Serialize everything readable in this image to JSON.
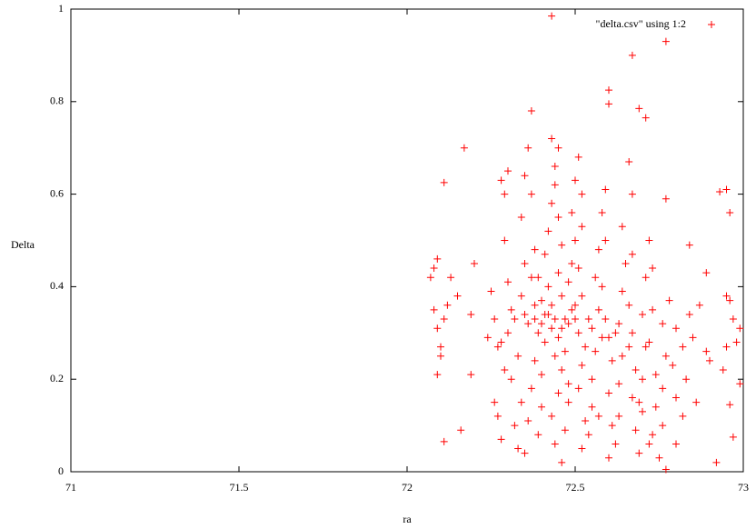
{
  "chart_data": {
    "type": "scatter",
    "x_label": "ra",
    "y_label": "Delta",
    "xlim": [
      71,
      73
    ],
    "ylim": [
      0,
      1
    ],
    "xticks": [
      71,
      71.5,
      72,
      72.5,
      73
    ],
    "yticks": [
      0,
      0.2,
      0.4,
      0.6,
      0.8,
      1
    ],
    "legend_position": "top-right",
    "x": [
      72.43,
      72.77,
      72.67,
      72.6,
      72.6,
      72.37,
      72.69,
      72.71,
      72.17,
      72.43,
      72.11,
      72.95,
      72.96,
      72.93,
      72.92,
      72.77,
      72.11,
      72.09,
      72.16,
      72.89,
      72.84,
      72.99,
      72.97,
      72.96,
      72.08,
      72.09,
      72.08,
      72.09,
      72.1,
      72.12,
      72.11,
      72.13,
      72.15,
      72.07,
      72.1,
      72.2,
      72.19,
      72.19,
      72.24,
      72.25,
      72.26,
      72.27,
      72.27,
      72.26,
      72.28,
      72.29,
      72.3,
      72.29,
      72.3,
      72.31,
      72.3,
      72.31,
      72.29,
      72.28,
      72.32,
      72.33,
      72.34,
      72.33,
      72.34,
      72.35,
      72.34,
      72.35,
      72.36,
      72.37,
      72.38,
      72.37,
      72.38,
      72.36,
      72.39,
      72.38,
      72.37,
      72.36,
      72.35,
      72.39,
      72.4,
      72.4,
      72.41,
      72.41,
      72.4,
      72.42,
      72.41,
      72.42,
      72.43,
      72.44,
      72.45,
      72.44,
      72.45,
      72.46,
      72.45,
      72.46,
      72.44,
      72.43,
      72.45,
      72.44,
      72.46,
      72.45,
      72.43,
      72.44,
      72.46,
      72.47,
      72.48,
      72.48,
      72.47,
      72.48,
      72.49,
      72.48,
      72.49,
      72.5,
      72.49,
      72.5,
      72.51,
      72.52,
      72.52,
      72.51,
      72.52,
      72.5,
      72.51,
      72.53,
      72.52,
      72.51,
      72.53,
      72.52,
      72.54,
      72.55,
      72.55,
      72.56,
      72.55,
      72.57,
      72.56,
      72.57,
      72.58,
      72.59,
      72.59,
      72.58,
      72.59,
      72.6,
      72.61,
      72.6,
      72.61,
      72.6,
      72.62,
      72.63,
      72.63,
      72.64,
      72.63,
      72.64,
      72.65,
      72.64,
      72.66,
      72.67,
      72.67,
      72.66,
      72.67,
      72.68,
      72.67,
      72.68,
      72.69,
      72.7,
      72.7,
      72.71,
      72.7,
      72.71,
      72.72,
      72.73,
      72.73,
      72.72,
      72.74,
      72.74,
      72.73,
      72.75,
      72.76,
      72.76,
      72.77,
      72.76,
      72.78,
      72.77,
      72.8,
      72.79,
      72.8,
      72.8,
      72.82,
      72.83,
      72.82,
      72.84,
      72.85,
      72.86,
      72.87,
      72.89,
      72.9,
      72.94,
      72.95,
      72.96,
      72.97,
      72.98,
      72.99,
      72.95,
      72.42,
      72.43,
      72.47,
      72.38,
      72.4,
      72.5,
      72.46,
      72.35,
      72.62,
      72.58,
      72.66,
      72.54,
      72.39,
      72.57,
      72.69,
      72.72,
      72.28,
      72.32
    ],
    "series": [
      {
        "name": "\"delta.csv\" using 1:2",
        "color": "#ff0000",
        "values": [
          0.985,
          0.93,
          0.9,
          0.825,
          0.795,
          0.78,
          0.785,
          0.765,
          0.7,
          0.72,
          0.625,
          0.61,
          0.56,
          0.605,
          0.02,
          0.005,
          0.065,
          0.21,
          0.09,
          0.43,
          0.49,
          0.19,
          0.075,
          0.145,
          0.44,
          0.46,
          0.35,
          0.31,
          0.27,
          0.36,
          0.33,
          0.42,
          0.38,
          0.42,
          0.25,
          0.45,
          0.34,
          0.21,
          0.29,
          0.39,
          0.33,
          0.27,
          0.12,
          0.15,
          0.63,
          0.6,
          0.65,
          0.5,
          0.41,
          0.35,
          0.3,
          0.2,
          0.22,
          0.07,
          0.1,
          0.05,
          0.15,
          0.25,
          0.38,
          0.45,
          0.55,
          0.64,
          0.7,
          0.6,
          0.48,
          0.42,
          0.36,
          0.32,
          0.3,
          0.24,
          0.18,
          0.11,
          0.04,
          0.08,
          0.14,
          0.21,
          0.28,
          0.34,
          0.37,
          0.4,
          0.47,
          0.52,
          0.58,
          0.66,
          0.7,
          0.62,
          0.55,
          0.49,
          0.43,
          0.38,
          0.33,
          0.31,
          0.29,
          0.25,
          0.22,
          0.17,
          0.12,
          0.06,
          0.02,
          0.09,
          0.15,
          0.19,
          0.26,
          0.32,
          0.35,
          0.41,
          0.45,
          0.5,
          0.56,
          0.63,
          0.68,
          0.6,
          0.53,
          0.44,
          0.38,
          0.33,
          0.3,
          0.27,
          0.23,
          0.18,
          0.11,
          0.05,
          0.08,
          0.14,
          0.2,
          0.26,
          0.31,
          0.35,
          0.42,
          0.48,
          0.56,
          0.61,
          0.5,
          0.4,
          0.33,
          0.29,
          0.24,
          0.17,
          0.1,
          0.03,
          0.06,
          0.12,
          0.19,
          0.25,
          0.32,
          0.39,
          0.45,
          0.53,
          0.67,
          0.6,
          0.47,
          0.36,
          0.3,
          0.22,
          0.16,
          0.09,
          0.04,
          0.13,
          0.2,
          0.27,
          0.34,
          0.42,
          0.5,
          0.44,
          0.35,
          0.28,
          0.21,
          0.14,
          0.08,
          0.03,
          0.1,
          0.18,
          0.25,
          0.32,
          0.37,
          0.59,
          0.31,
          0.23,
          0.16,
          0.06,
          0.12,
          0.2,
          0.27,
          0.34,
          0.29,
          0.15,
          0.36,
          0.26,
          0.24,
          0.22,
          0.27,
          0.37,
          0.33,
          0.28,
          0.31,
          0.38,
          0.34,
          0.36,
          0.33,
          0.33,
          0.32,
          0.36,
          0.31,
          0.34,
          0.3,
          0.29,
          0.27,
          0.33,
          0.42,
          0.12,
          0.15,
          0.06,
          0.28,
          0.33
        ]
      }
    ]
  }
}
